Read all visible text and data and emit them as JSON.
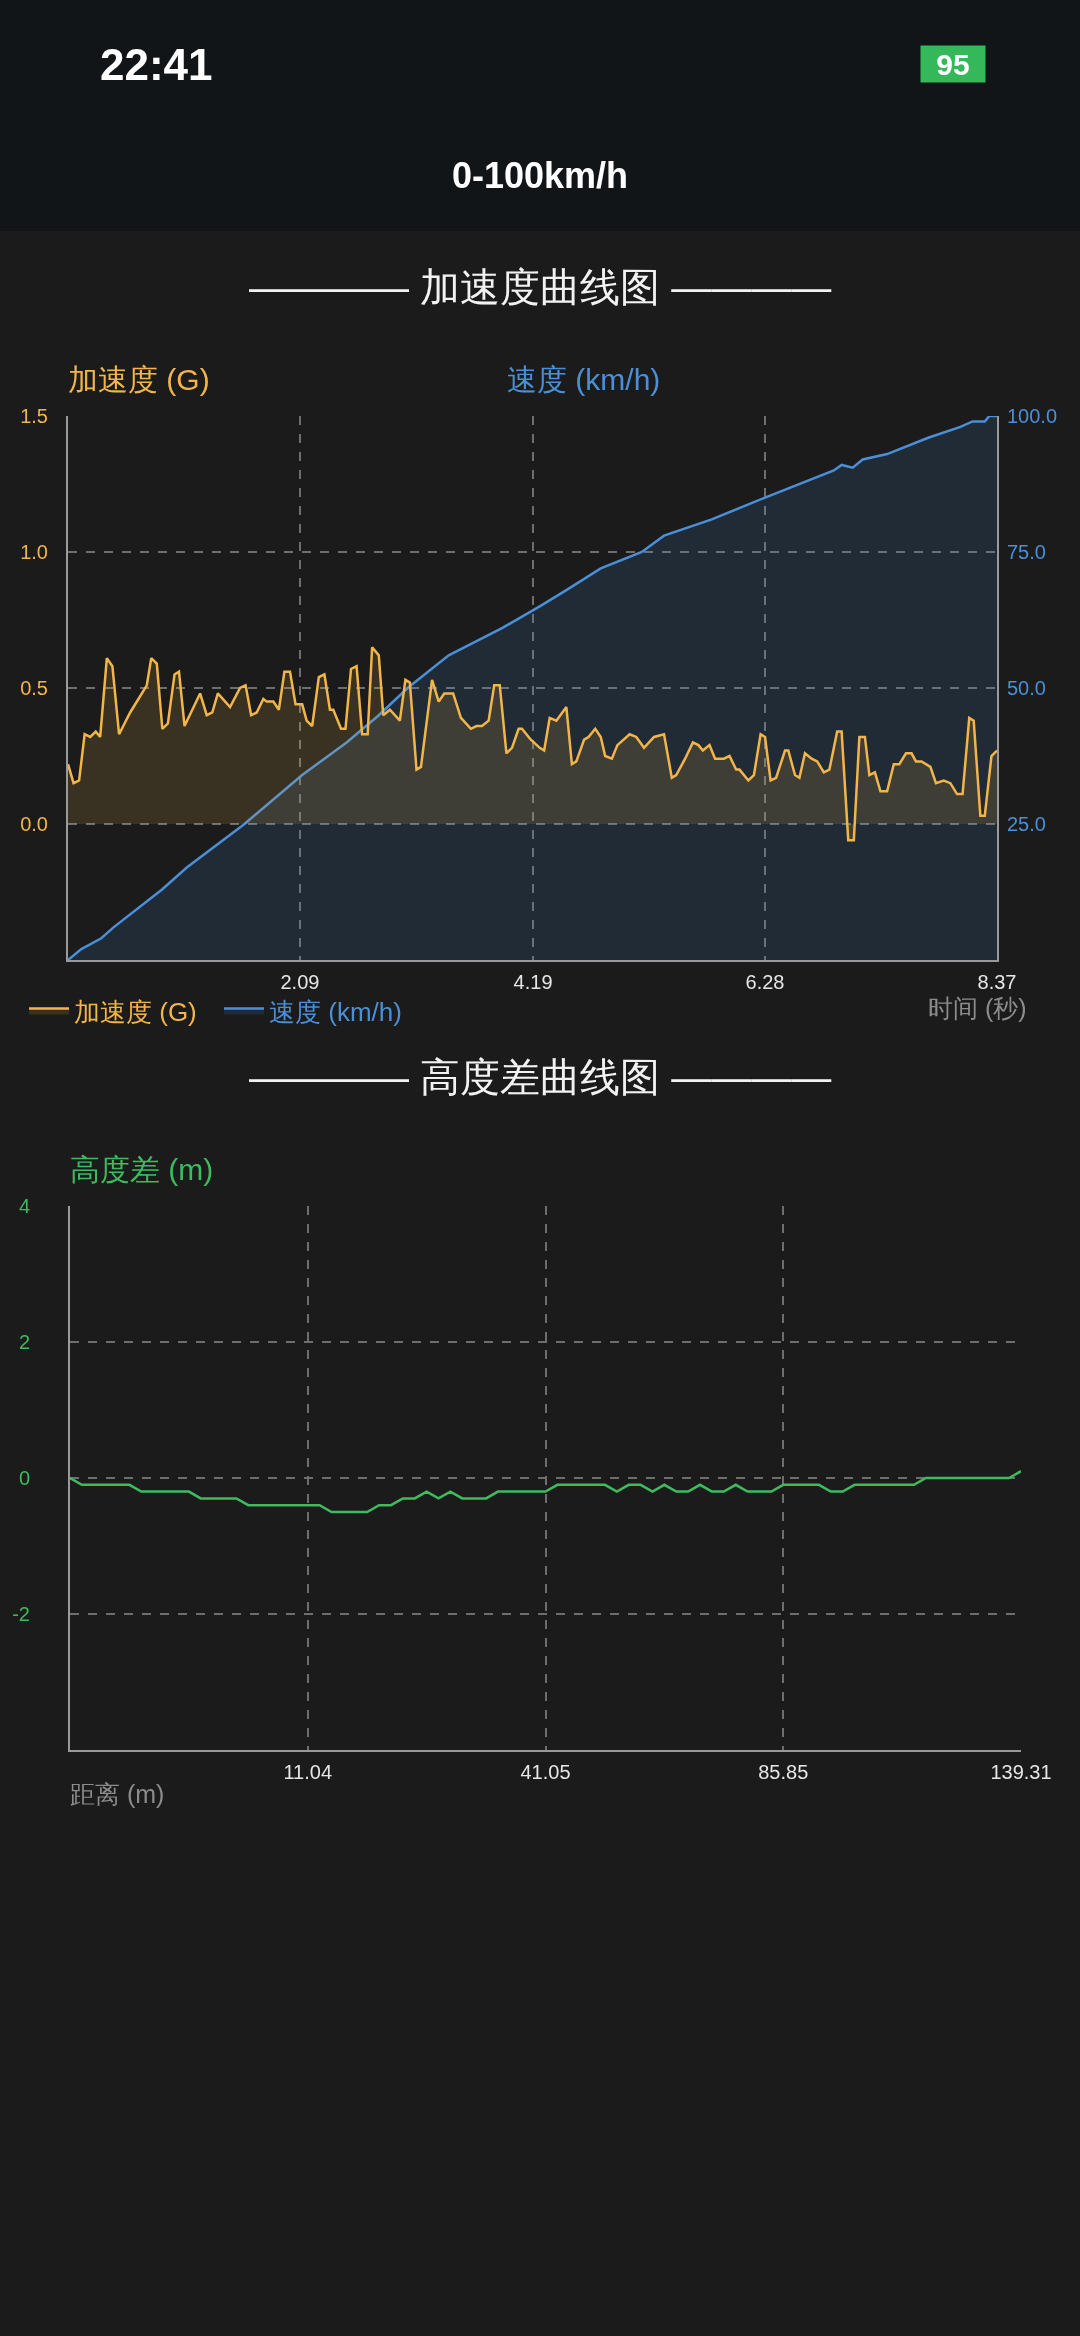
{
  "chart_data": [
    {
      "type": "other",
      "title": "0-100km/h",
      "annotations": [
        "22:41",
        "95"
      ]
    },
    {
      "type": "area",
      "title": "———— 加速度曲线图 ————",
      "xlabel": "时间 (秒)",
      "ylabel": "加速度 (G)",
      "y2label": "速度 (km/h)",
      "xlim": [
        0,
        8.37
      ],
      "xticks": [
        2.09,
        4.19,
        6.28,
        8.37
      ],
      "ylim": [
        -0.5,
        1.5
      ],
      "yticks": [
        {
          "value": 0,
          "label": "0.0"
        },
        0.5,
        {
          "value": 1,
          "label": "1.0"
        },
        1.5
      ],
      "y2lim": [
        0,
        100
      ],
      "y2ticks": [
        {
          "value": 25,
          "label": "25.0"
        },
        {
          "value": 50,
          "label": "50.0"
        },
        {
          "value": 75,
          "label": "75.0"
        },
        {
          "value": 100,
          "label": "100.0"
        }
      ],
      "grid": true,
      "legend": "bottom left",
      "series": [
        {
          "name": "加速度 (G)",
          "color": "#f2b54a",
          "x": [
            0,
            0.05,
            0.1,
            0.15,
            0.2,
            0.25,
            0.29,
            0.35,
            0.4,
            0.46,
            0.56,
            0.71,
            0.75,
            0.8,
            0.85,
            0.9,
            0.96,
            1.0,
            1.05,
            1.19,
            1.25,
            1.3,
            1.35,
            1.46,
            1.55,
            1.6,
            1.65,
            1.7,
            1.76,
            1.79,
            1.85,
            1.9,
            1.95,
            2.0,
            2.05,
            2.11,
            2.15,
            2.2,
            2.26,
            2.31,
            2.36,
            2.39,
            2.46,
            2.5,
            2.55,
            2.6,
            2.65,
            2.7,
            2.74,
            2.8,
            2.84,
            2.9,
            2.99,
            3.04,
            3.08,
            3.14,
            3.18,
            3.28,
            3.34,
            3.39,
            3.47,
            3.54,
            3.63,
            3.68,
            3.73,
            3.79,
            3.84,
            3.89,
            3.95,
            4.0,
            4.06,
            4.09,
            4.17,
            4.25,
            4.29,
            4.34,
            4.4,
            4.49,
            4.54,
            4.58,
            4.65,
            4.69,
            4.75,
            4.8,
            4.84,
            4.9,
            4.95,
            5.06,
            5.12,
            5.19,
            5.28,
            5.37,
            5.44,
            5.48,
            5.56,
            5.63,
            5.68,
            5.72,
            5.78,
            5.83,
            5.91,
            5.96,
            6.02,
            6.05,
            6.13,
            6.18,
            6.24,
            6.28,
            6.33,
            6.38,
            6.46,
            6.49,
            6.55,
            6.59,
            6.64,
            6.7,
            6.75,
            6.81,
            6.86,
            6.93,
            6.97,
            7.03,
            7.08,
            7.13,
            7.18,
            7.22,
            7.27,
            7.32,
            7.38,
            7.44,
            7.49,
            7.55,
            7.6,
            7.64,
            7.69,
            7.77,
            7.82,
            7.89,
            7.95,
            8.01,
            8.06,
            8.12,
            8.16,
            8.22,
            8.26,
            8.32,
            8.37
          ],
          "values": [
            0.22,
            0.15,
            0.16,
            0.33,
            0.32,
            0.34,
            0.32,
            0.61,
            0.58,
            0.33,
            0.41,
            0.51,
            0.61,
            0.59,
            0.35,
            0.37,
            0.55,
            0.56,
            0.36,
            0.48,
            0.4,
            0.41,
            0.48,
            0.43,
            0.5,
            0.51,
            0.4,
            0.41,
            0.46,
            0.45,
            0.45,
            0.42,
            0.56,
            0.56,
            0.44,
            0.44,
            0.38,
            0.36,
            0.54,
            0.55,
            0.42,
            0.42,
            0.35,
            0.35,
            0.57,
            0.58,
            0.33,
            0.33,
            0.65,
            0.62,
            0.4,
            0.42,
            0.38,
            0.53,
            0.52,
            0.2,
            0.21,
            0.53,
            0.45,
            0.48,
            0.48,
            0.39,
            0.35,
            0.36,
            0.36,
            0.38,
            0.51,
            0.51,
            0.26,
            0.28,
            0.35,
            0.35,
            0.31,
            0.28,
            0.27,
            0.39,
            0.38,
            0.43,
            0.22,
            0.23,
            0.31,
            0.32,
            0.35,
            0.32,
            0.25,
            0.24,
            0.29,
            0.33,
            0.32,
            0.28,
            0.32,
            0.33,
            0.17,
            0.18,
            0.24,
            0.3,
            0.29,
            0.27,
            0.29,
            0.24,
            0.24,
            0.25,
            0.2,
            0.2,
            0.16,
            0.18,
            0.33,
            0.32,
            0.16,
            0.17,
            0.27,
            0.27,
            0.18,
            0.17,
            0.26,
            0.24,
            0.23,
            0.19,
            0.2,
            0.34,
            0.34,
            -0.06,
            -0.06,
            0.32,
            0.32,
            0.18,
            0.19,
            0.12,
            0.12,
            0.22,
            0.22,
            0.26,
            0.26,
            0.23,
            0.23,
            0.21,
            0.15,
            0.16,
            0.15,
            0.11,
            0.11,
            0.39,
            0.38,
            0.03,
            0.03,
            0.25,
            0.27
          ]
        },
        {
          "name": "速度 (km/h)",
          "color": "#4a8fd8",
          "axis": "y2",
          "x": [
            0,
            0.12,
            0.3,
            0.41,
            0.85,
            1.07,
            1.59,
            2.11,
            2.51,
            2.8,
            3.06,
            3.43,
            3.91,
            4.25,
            4.49,
            4.8,
            5.17,
            5.37,
            5.8,
            6.28,
            6.9,
            6.97,
            7.07,
            7.16,
            7.38,
            7.75,
            8.04,
            8.15,
            8.26,
            8.3,
            8.37
          ],
          "values": [
            0,
            2,
            4,
            6,
            13,
            17,
            25,
            34,
            40,
            45,
            50,
            56,
            61,
            65,
            68,
            72,
            75,
            78,
            81,
            85,
            90,
            91,
            90.5,
            92,
            93,
            96,
            98,
            99,
            99,
            100,
            100
          ]
        }
      ]
    },
    {
      "type": "line",
      "title": "———— 高度差曲线图 ————",
      "xlabel": "距离 (m)",
      "ylabel": "高度差 (m)",
      "categories": [
        null,
        null,
        null,
        null,
        null,
        null,
        null,
        null,
        null,
        null,
        null,
        null,
        null,
        null,
        null,
        null,
        null,
        null,
        null,
        null,
        "11.04",
        null,
        null,
        null,
        null,
        null,
        null,
        null,
        null,
        null,
        null,
        null,
        null,
        null,
        null,
        null,
        null,
        null,
        null,
        null,
        "41.05",
        null,
        null,
        null,
        null,
        null,
        null,
        null,
        null,
        null,
        null,
        null,
        null,
        null,
        null,
        null,
        null,
        null,
        null,
        null,
        "85.85",
        null,
        null,
        null,
        null,
        null,
        null,
        null,
        null,
        null,
        null,
        null,
        null,
        null,
        null,
        null,
        null,
        null,
        null,
        null,
        "139.31"
      ],
      "ylim": [
        -4,
        4
      ],
      "yticks": [
        -2,
        0,
        2,
        4
      ],
      "grid": true,
      "series": [
        {
          "color": "#3dbb5e",
          "values": [
            0,
            -0.1,
            -0.1,
            -0.1,
            -0.1,
            -0.1,
            -0.2,
            -0.2,
            -0.2,
            -0.2,
            -0.2,
            -0.3,
            -0.3,
            -0.3,
            -0.3,
            -0.4,
            -0.4,
            -0.4,
            -0.4,
            -0.4,
            -0.4,
            -0.4,
            -0.5,
            -0.5,
            -0.5,
            -0.5,
            -0.4,
            -0.4,
            -0.3,
            -0.3,
            -0.2,
            -0.3,
            -0.2,
            -0.3,
            -0.3,
            -0.3,
            -0.2,
            -0.2,
            -0.2,
            -0.2,
            -0.2,
            -0.1,
            -0.1,
            -0.1,
            -0.1,
            -0.1,
            -0.2,
            -0.1,
            -0.1,
            -0.2,
            -0.1,
            -0.2,
            -0.2,
            -0.1,
            -0.2,
            -0.2,
            -0.1,
            -0.2,
            -0.2,
            -0.2,
            -0.1,
            -0.1,
            -0.1,
            -0.1,
            -0.2,
            -0.2,
            -0.1,
            -0.1,
            -0.1,
            -0.1,
            -0.1,
            -0.1,
            0,
            0,
            0,
            0,
            0,
            0,
            0,
            0,
            0.1
          ]
        }
      ]
    }
  ]
}
